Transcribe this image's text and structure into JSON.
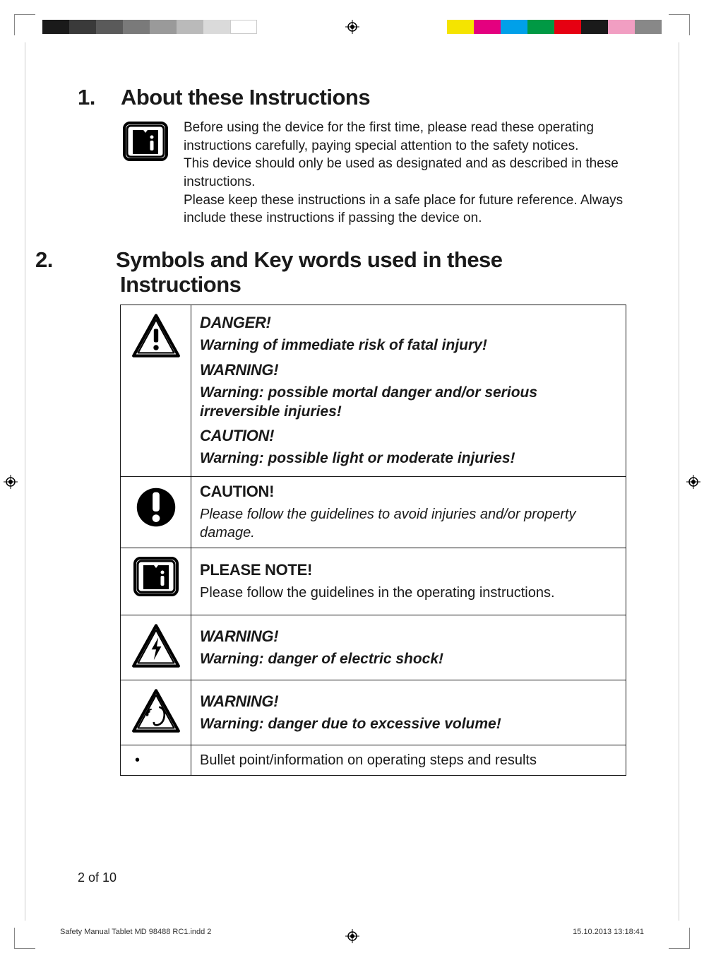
{
  "printer_marks": {
    "left_bar_colors": [
      "#1a1a1a",
      "#3a3a3a",
      "#5a5a5a",
      "#7a7a7a",
      "#9a9a9a",
      "#bababa",
      "#dadada",
      "#ffffff"
    ],
    "right_bar_colors": [
      "#f5e400",
      "#e4007f",
      "#00a0e9",
      "#009944",
      "#e60012",
      "#1a1a1a",
      "#f19ec2",
      "#888888"
    ]
  },
  "section1": {
    "number": "1.",
    "title": "About these Instructions",
    "para1": "Before using the device for the first time, please read these operating instructions carefully, paying special attention to the safety notices.",
    "para2": "This device should only be used as designated and as described in these instructions.",
    "para3": "Please keep these instructions in a safe place for future reference. Always include these instructions if passing the device on."
  },
  "section2": {
    "number": "2.",
    "title": "Symbols and Key words used in these Instructions",
    "rows": [
      {
        "icon": "warning-triangle-exclaim",
        "groups": [
          {
            "heading": "DANGER!",
            "sub": "Warning of immediate risk of fatal injury!"
          },
          {
            "heading": "WARNING!",
            "sub": "Warning: possible mortal danger and/or serious irreversible injuries!"
          },
          {
            "heading": "CAUTION!",
            "sub": "Warning: possible light or moderate injuries!"
          }
        ]
      },
      {
        "icon": "circle-exclaim",
        "heading": "CAUTION!",
        "body": "Please follow the guidelines to avoid injuries and/or property damage."
      },
      {
        "icon": "manual-info",
        "heading": "PLEASE NOTE!",
        "body": "Please follow the guidelines in the operating instructions."
      },
      {
        "icon": "warning-triangle-bolt",
        "heading": "WARNING!",
        "sub": "Warning: danger of electric shock!"
      },
      {
        "icon": "warning-triangle-ear",
        "heading": "WARNING!",
        "sub": "Warning: danger due to excessive volume!"
      },
      {
        "icon": "bullet",
        "body": "Bullet point/information on operating steps and results"
      }
    ]
  },
  "footer": {
    "page": "2 of 10",
    "file": "Safety Manual Tablet MD 98488 RC1.indd   2",
    "datetime": "15.10.2013   13:18:41"
  }
}
